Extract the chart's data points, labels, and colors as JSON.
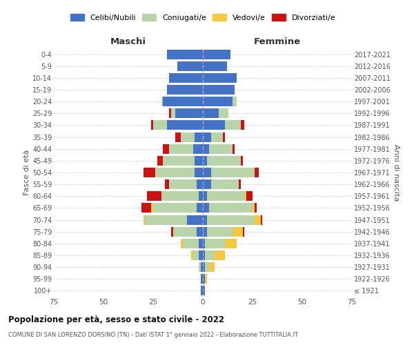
{
  "age_groups": [
    "100+",
    "95-99",
    "90-94",
    "85-89",
    "80-84",
    "75-79",
    "70-74",
    "65-69",
    "60-64",
    "55-59",
    "50-54",
    "45-49",
    "40-44",
    "35-39",
    "30-34",
    "25-29",
    "20-24",
    "15-19",
    "10-14",
    "5-9",
    "0-4"
  ],
  "birth_years": [
    "≤ 1921",
    "1922-1926",
    "1927-1931",
    "1932-1936",
    "1937-1941",
    "1942-1946",
    "1947-1951",
    "1952-1956",
    "1957-1961",
    "1962-1966",
    "1967-1971",
    "1972-1976",
    "1977-1981",
    "1982-1986",
    "1987-1991",
    "1992-1996",
    "1997-2001",
    "2002-2006",
    "2007-2011",
    "2012-2016",
    "2017-2021"
  ],
  "maschi": {
    "celibi": [
      1,
      1,
      1,
      2,
      2,
      3,
      8,
      3,
      2,
      3,
      4,
      4,
      5,
      4,
      18,
      14,
      20,
      18,
      17,
      13,
      18
    ],
    "coniugati": [
      0,
      0,
      1,
      3,
      8,
      12,
      21,
      22,
      19,
      14,
      20,
      16,
      12,
      7,
      7,
      2,
      1,
      0,
      0,
      0,
      0
    ],
    "vedovi": [
      0,
      0,
      0,
      1,
      1,
      0,
      1,
      1,
      0,
      0,
      0,
      0,
      0,
      0,
      0,
      0,
      0,
      0,
      0,
      0,
      0
    ],
    "divorziati": [
      0,
      0,
      0,
      0,
      0,
      1,
      0,
      5,
      7,
      2,
      6,
      3,
      3,
      3,
      1,
      1,
      0,
      0,
      0,
      0,
      0
    ]
  },
  "femmine": {
    "nubili": [
      1,
      1,
      1,
      1,
      1,
      2,
      2,
      3,
      2,
      4,
      4,
      2,
      3,
      4,
      11,
      8,
      15,
      16,
      17,
      12,
      14
    ],
    "coniugate": [
      0,
      0,
      2,
      5,
      10,
      13,
      24,
      22,
      19,
      14,
      22,
      17,
      12,
      6,
      8,
      5,
      2,
      0,
      0,
      0,
      0
    ],
    "vedove": [
      0,
      1,
      3,
      5,
      6,
      5,
      3,
      1,
      1,
      0,
      0,
      0,
      0,
      0,
      0,
      0,
      0,
      0,
      0,
      0,
      0
    ],
    "divorziate": [
      0,
      0,
      0,
      0,
      0,
      1,
      1,
      1,
      3,
      1,
      2,
      1,
      1,
      1,
      2,
      0,
      0,
      0,
      0,
      0,
      0
    ]
  },
  "colors": {
    "celibi": "#4472C4",
    "coniugati": "#B8D4A8",
    "vedovi": "#F5C842",
    "divorziati": "#CC1111"
  },
  "xlim": 75,
  "title": "Popolazione per età, sesso e stato civile - 2022",
  "subtitle": "COMUNE DI SAN LORENZO DORSINO (TN) - Dati ISTAT 1° gennaio 2022 - Elaborazione TUTTITALIA.IT",
  "ylabel": "Fasce di età",
  "ylabel_right": "Anni di nascita",
  "xlabel_left": "Maschi",
  "xlabel_right": "Femmine",
  "background_color": "#ffffff",
  "grid_color": "#cccccc"
}
